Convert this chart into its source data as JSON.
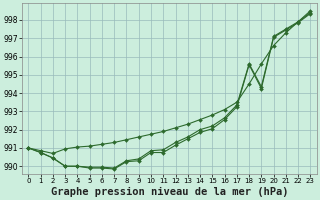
{
  "title": "Graphe pression niveau de la mer (hPa)",
  "background_color": "#cceedd",
  "plot_bg_color": "#cceedd",
  "grid_color": "#99bbbb",
  "line_color": "#2d6a2d",
  "xlim": [
    -0.5,
    23.5
  ],
  "ylim": [
    989.6,
    998.9
  ],
  "yticks": [
    990,
    991,
    992,
    993,
    994,
    995,
    996,
    997,
    998
  ],
  "xticks": [
    0,
    1,
    2,
    3,
    4,
    5,
    6,
    7,
    8,
    9,
    10,
    11,
    12,
    13,
    14,
    15,
    16,
    17,
    18,
    19,
    20,
    21,
    22,
    23
  ],
  "hours": [
    0,
    1,
    2,
    3,
    4,
    5,
    6,
    7,
    8,
    9,
    10,
    11,
    12,
    13,
    14,
    15,
    16,
    17,
    18,
    19,
    20,
    21,
    22,
    23
  ],
  "line1": [
    991.0,
    990.85,
    990.7,
    990.95,
    991.05,
    991.1,
    991.2,
    991.3,
    991.45,
    991.6,
    991.75,
    991.9,
    992.1,
    992.3,
    992.55,
    992.8,
    993.1,
    993.5,
    994.5,
    995.6,
    996.6,
    997.3,
    997.9,
    998.5
  ],
  "line2": [
    991.0,
    990.75,
    990.45,
    990.0,
    990.0,
    989.95,
    989.95,
    989.9,
    990.3,
    990.4,
    990.85,
    990.9,
    991.3,
    991.6,
    992.0,
    992.2,
    992.65,
    993.35,
    995.6,
    994.35,
    997.1,
    997.5,
    997.9,
    998.4
  ],
  "line3": [
    991.0,
    990.75,
    990.45,
    990.0,
    990.0,
    989.9,
    989.9,
    989.85,
    990.25,
    990.3,
    990.75,
    990.75,
    991.15,
    991.5,
    991.85,
    992.05,
    992.55,
    993.25,
    995.55,
    994.25,
    997.05,
    997.45,
    997.85,
    998.35
  ]
}
